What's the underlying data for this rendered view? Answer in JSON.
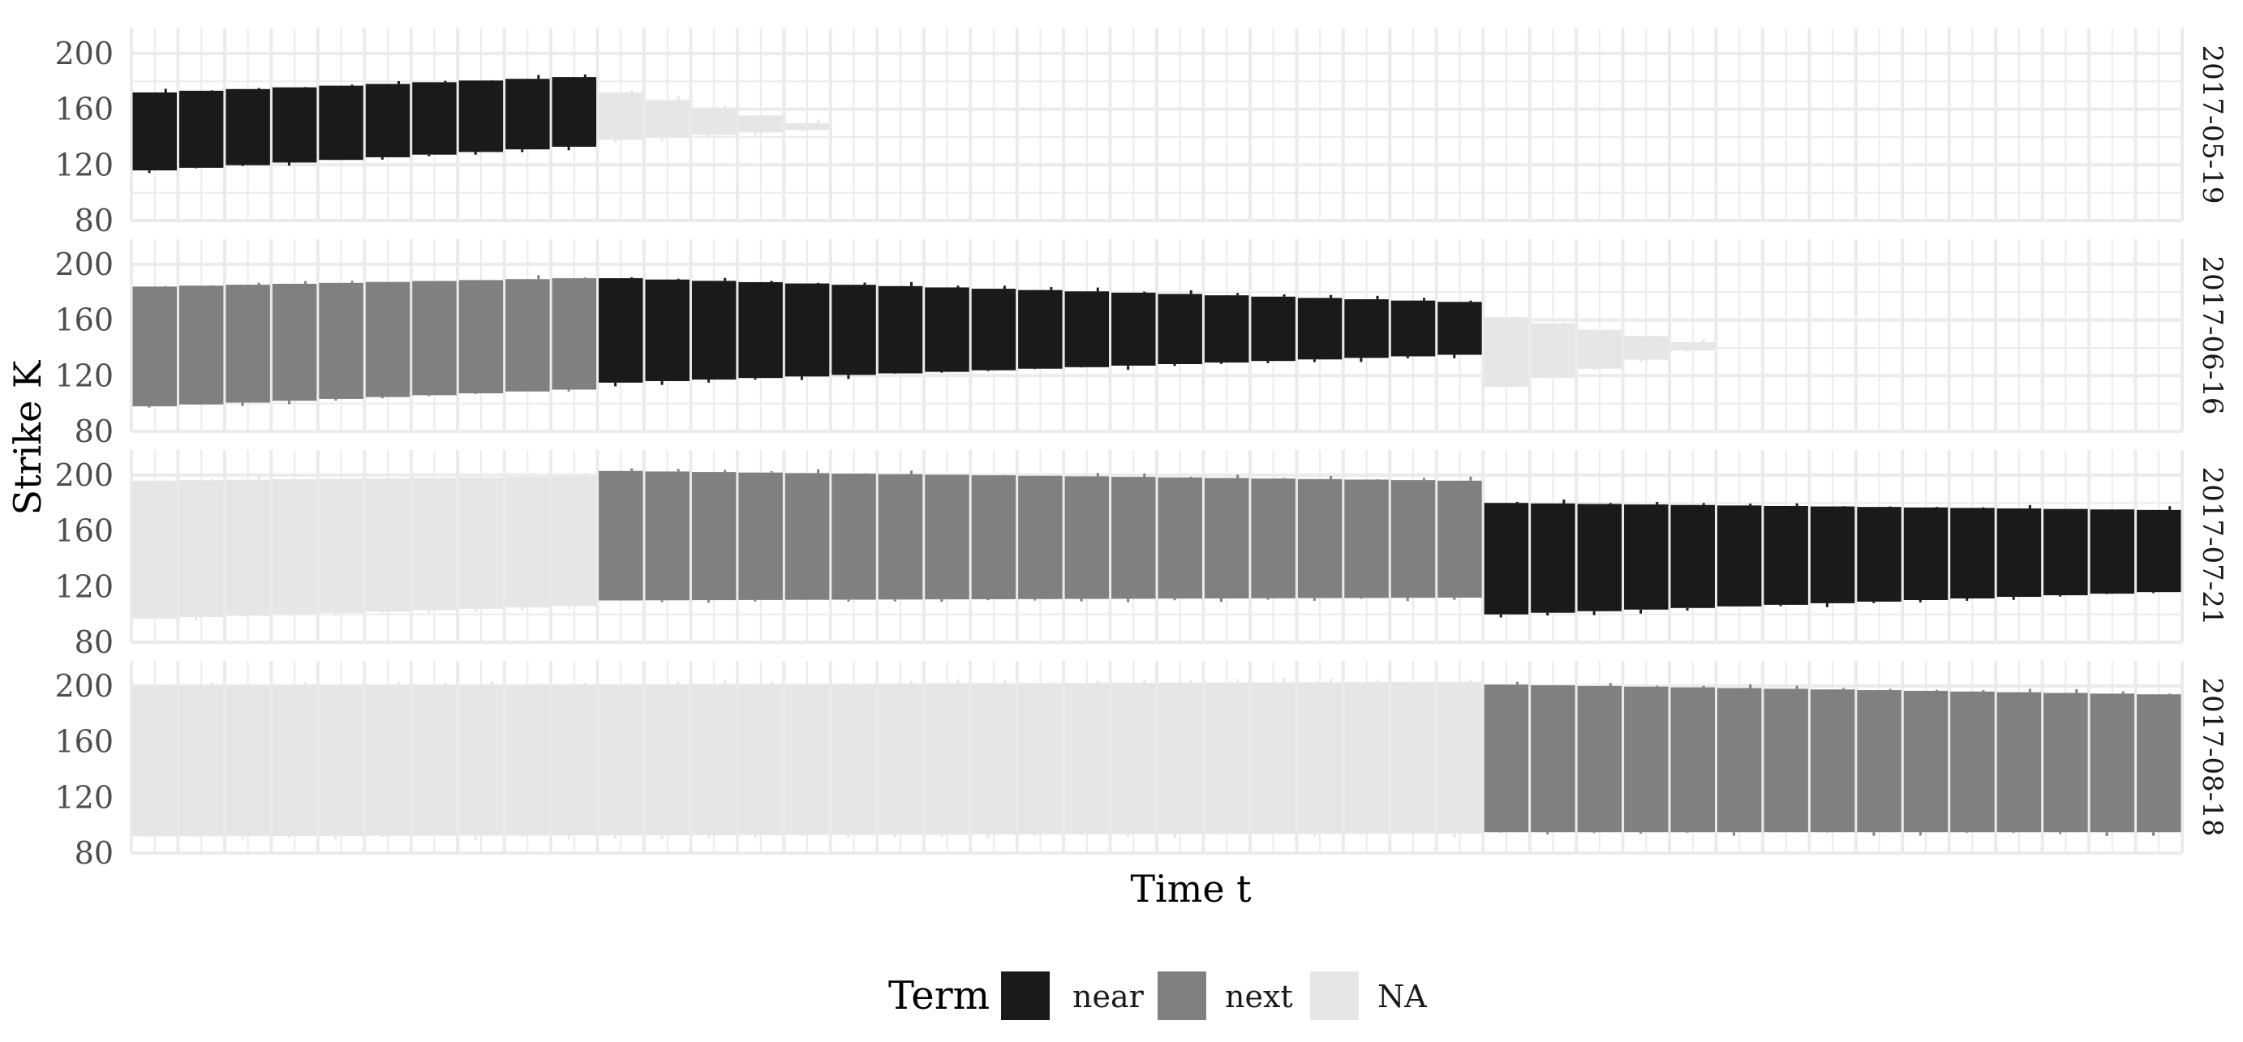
{
  "chart_data": {
    "type": "bar",
    "subtype": "faceted range bars (strike range per trading day)",
    "xlabel": "Time t",
    "ylabel": "Strike K",
    "yticks": [
      80,
      120,
      160,
      200
    ],
    "ylim": [
      80,
      218
    ],
    "x_tick_labels": "none",
    "grid": true,
    "legend": {
      "title": "Term",
      "position": "bottom",
      "entries": [
        {
          "name": "near",
          "color": "#1a1a1a"
        },
        {
          "name": "next",
          "color": "#808080"
        },
        {
          "name": "NA",
          "color": "#e6e6e6"
        }
      ]
    },
    "n_periods": 44,
    "facets": [
      {
        "label": "2017-05-19",
        "segments": [
          {
            "start": 1,
            "end": 10,
            "term": "near",
            "low_start": 116,
            "low_end": 133,
            "high_start": 172,
            "high_end": 183
          },
          {
            "start": 11,
            "end": 15,
            "term": "NA",
            "low_start": 138,
            "low_end": 145,
            "high_start": 172,
            "high_end": 150
          }
        ]
      },
      {
        "label": "2017-06-16",
        "segments": [
          {
            "start": 1,
            "end": 10,
            "term": "next",
            "low_start": 98,
            "low_end": 110,
            "high_start": 184,
            "high_end": 190
          },
          {
            "start": 11,
            "end": 29,
            "term": "near",
            "low_start": 115,
            "low_end": 135,
            "high_start": 190,
            "high_end": 173
          },
          {
            "start": 30,
            "end": 34,
            "term": "NA",
            "low_start": 112,
            "low_end": 138,
            "high_start": 162,
            "high_end": 144
          }
        ]
      },
      {
        "label": "2017-07-21",
        "segments": [
          {
            "start": 1,
            "end": 10,
            "term": "NA",
            "low_start": 97,
            "low_end": 106,
            "high_start": 196,
            "high_end": 199
          },
          {
            "start": 11,
            "end": 29,
            "term": "next",
            "low_start": 110,
            "low_end": 112,
            "high_start": 203,
            "high_end": 196
          },
          {
            "start": 30,
            "end": 44,
            "term": "near",
            "low_start": 100,
            "low_end": 116,
            "high_start": 180,
            "high_end": 175
          }
        ]
      },
      {
        "label": "2017-08-18",
        "segments": [
          {
            "start": 1,
            "end": 29,
            "term": "NA",
            "low_start": 92,
            "low_end": 94,
            "high_start": 200,
            "high_end": 203
          },
          {
            "start": 30,
            "end": 44,
            "term": "next",
            "low_start": 95,
            "low_end": 95,
            "high_start": 201,
            "high_end": 194
          }
        ]
      }
    ]
  }
}
